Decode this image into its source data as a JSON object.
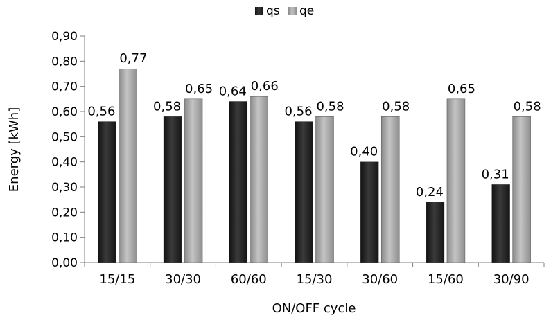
{
  "chart_data": {
    "type": "bar",
    "title": "",
    "xlabel": "ON/OFF cycle",
    "ylabel": "Energy [kWh]",
    "ylim": [
      0,
      0.9
    ],
    "ytick_step": 0.1,
    "ytick_labels": [
      "0,00",
      "0,10",
      "0,20",
      "0,30",
      "0,40",
      "0,50",
      "0,60",
      "0,70",
      "0,80",
      "0,90"
    ],
    "categories": [
      "15/15",
      "30/30",
      "60/60",
      "15/30",
      "30/60",
      "15/60",
      "30/90"
    ],
    "legend_position": "top-center",
    "grid": false,
    "series": [
      {
        "name": "qs",
        "color": "#2b2b2b",
        "values": [
          0.56,
          0.58,
          0.64,
          0.56,
          0.4,
          0.24,
          0.31
        ],
        "labels": [
          "0,56",
          "0,58",
          "0,64",
          "0,56",
          "0,40",
          "0,24",
          "0,31"
        ]
      },
      {
        "name": "qe",
        "color": "#a6a6a6",
        "values": [
          0.77,
          0.65,
          0.66,
          0.58,
          0.58,
          0.65,
          0.58
        ],
        "labels": [
          "0,77",
          "0,65",
          "0,66",
          "0,58",
          "0,58",
          "0,65",
          "0,58"
        ]
      }
    ]
  }
}
